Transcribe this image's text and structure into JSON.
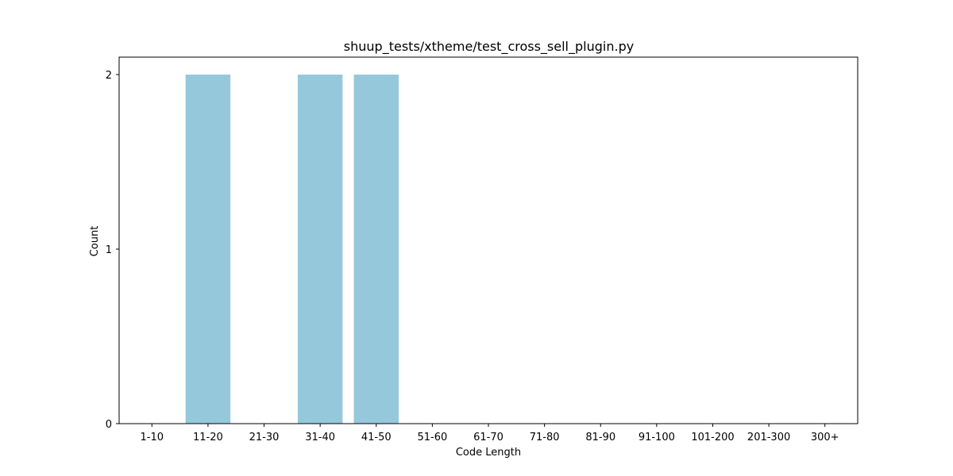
{
  "chart_data": {
    "type": "bar",
    "title": "shuup_tests/xtheme/test_cross_sell_plugin.py",
    "xlabel": "Code Length",
    "ylabel": "Count",
    "categories": [
      "1-10",
      "11-20",
      "21-30",
      "31-40",
      "41-50",
      "51-60",
      "61-70",
      "71-80",
      "81-90",
      "91-100",
      "101-200",
      "201-300",
      "300+"
    ],
    "values": [
      0,
      2,
      0,
      2,
      2,
      0,
      0,
      0,
      0,
      0,
      0,
      0,
      0
    ],
    "ylim": [
      0,
      2.1
    ],
    "yticks": [
      "0",
      "1",
      "2"
    ],
    "bar_color": "#96c8dc",
    "grid": false,
    "legend": "none"
  }
}
